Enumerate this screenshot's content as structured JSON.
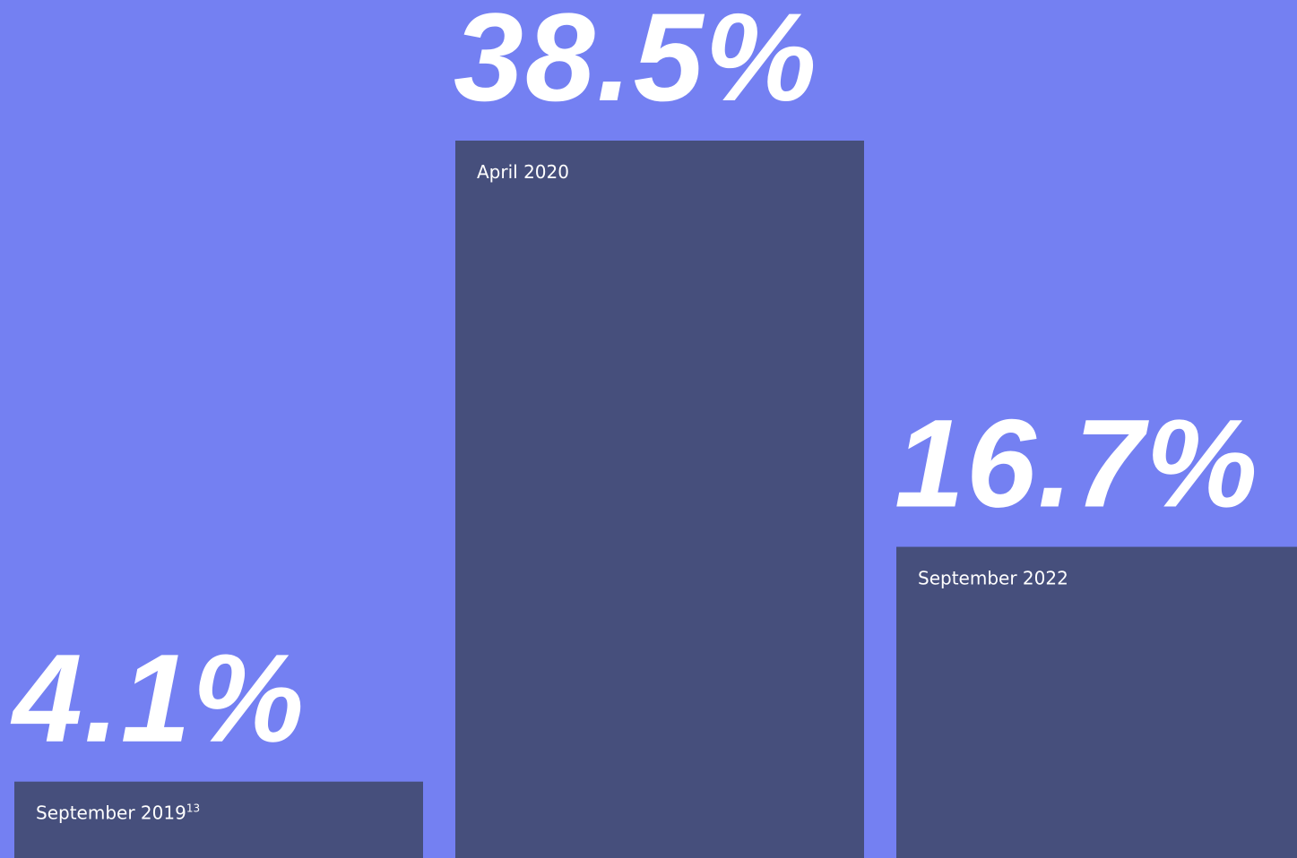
{
  "chart_data": {
    "type": "bar",
    "categories": [
      "September 2019",
      "April 2020",
      "September 2022"
    ],
    "category_footnotes": [
      "13",
      null,
      null
    ],
    "values": [
      4.1,
      38.5,
      16.7
    ],
    "value_labels": [
      "4.1%",
      "38.5%",
      "16.7%"
    ],
    "color": "#464f7c",
    "background": "#7480f2"
  }
}
